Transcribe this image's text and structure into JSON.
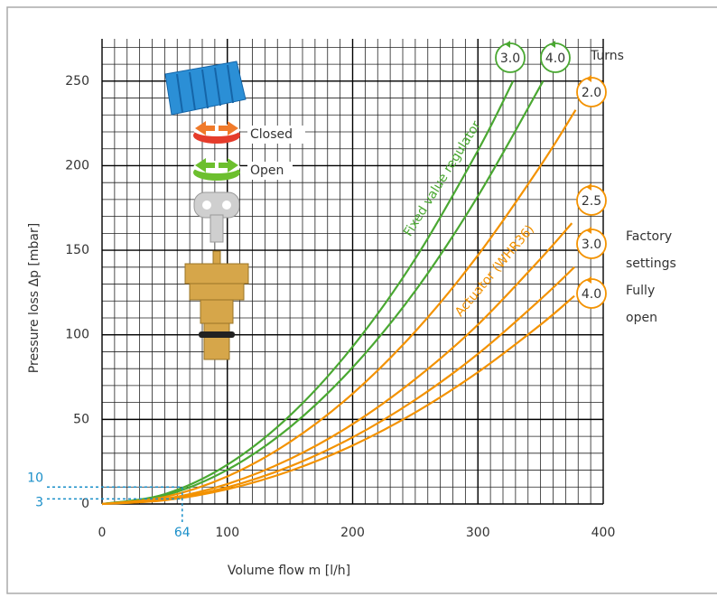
{
  "chart_data": {
    "type": "line",
    "x_label": "Volume flow m [l/h]",
    "y_label": "Pressure loss Δp [mbar]",
    "xlim": [
      0,
      400
    ],
    "xticks": [
      0,
      100,
      200,
      300,
      400
    ],
    "ylim": [
      0,
      275
    ],
    "yticks": [
      0,
      50,
      100,
      150,
      200,
      250
    ],
    "grid": true,
    "minor_step": 10,
    "series": [
      {
        "name": "3.0",
        "group": "Fixed value regulator",
        "color": "#4aa832",
        "x": [
          0,
          50,
          100,
          150,
          200,
          250,
          300,
          328
        ],
        "values": [
          0,
          5.8,
          23.2,
          52.3,
          93,
          145,
          209,
          250
        ]
      },
      {
        "name": "4.0",
        "group": "Fixed value regulator",
        "color": "#4aa832",
        "x": [
          0,
          50,
          100,
          150,
          200,
          250,
          300,
          352
        ],
        "values": [
          0,
          5,
          20.2,
          45.4,
          80.7,
          126,
          182,
          250
        ]
      },
      {
        "name": "2.0",
        "group": "Actuator (WHR36)",
        "color": "#f39200",
        "x": [
          0,
          50,
          100,
          150,
          200,
          250,
          300,
          350,
          378
        ],
        "values": [
          0,
          4.1,
          16.3,
          36.7,
          65.2,
          102,
          147,
          200,
          233
        ]
      },
      {
        "name": "2.5",
        "group": "Actuator (WHR36)",
        "color": "#f39200",
        "x": [
          0,
          50,
          100,
          150,
          200,
          250,
          300,
          350,
          375
        ],
        "values": [
          0,
          3,
          11.8,
          26.6,
          47.2,
          73.8,
          106,
          145,
          166
        ]
      },
      {
        "name": "3.0",
        "group": "Actuator (WHR36)",
        "color": "#f39200",
        "x": [
          0,
          50,
          100,
          150,
          200,
          250,
          300,
          350,
          377
        ],
        "values": [
          0,
          2.5,
          9.9,
          22.2,
          39.4,
          61.6,
          88.7,
          121,
          140
        ]
      },
      {
        "name": "4.0",
        "group": "Actuator (WHR36)",
        "color": "#f39200",
        "x": [
          0,
          50,
          100,
          150,
          200,
          250,
          300,
          350,
          377
        ],
        "values": [
          0,
          2.2,
          8.7,
          19.5,
          34.6,
          54.1,
          77.9,
          106,
          123
        ]
      }
    ],
    "turns_label": "Turns",
    "factory_label": [
      "Factory",
      "settings"
    ],
    "fully_open_label": [
      "Fully",
      "open"
    ],
    "closed_label": "Closed",
    "open_label": "Open",
    "annotation": {
      "x": 64,
      "y_values": [
        10,
        3
      ],
      "color": "#1a8fc9"
    }
  }
}
